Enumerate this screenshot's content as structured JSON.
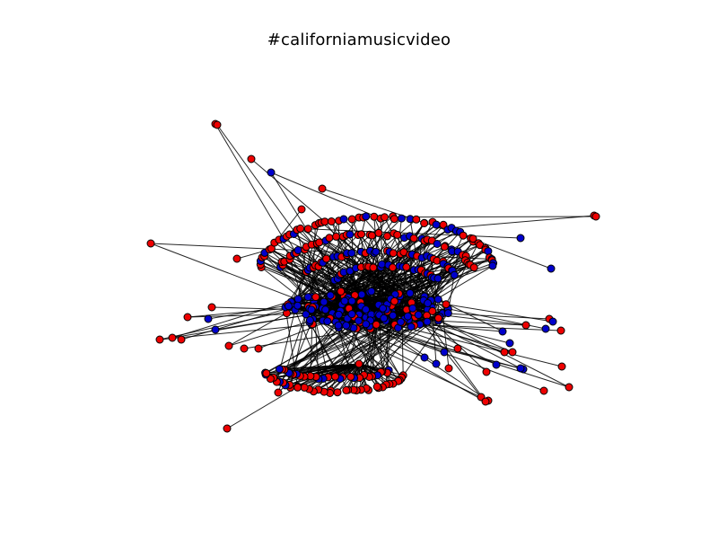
{
  "figure": {
    "title": "#californiamusicvideo"
  },
  "colors": {
    "node_a": "#ee0000",
    "node_b": "#0000cc",
    "edge": "#000000",
    "node_outline": "#000000",
    "background": "#ffffff"
  }
}
